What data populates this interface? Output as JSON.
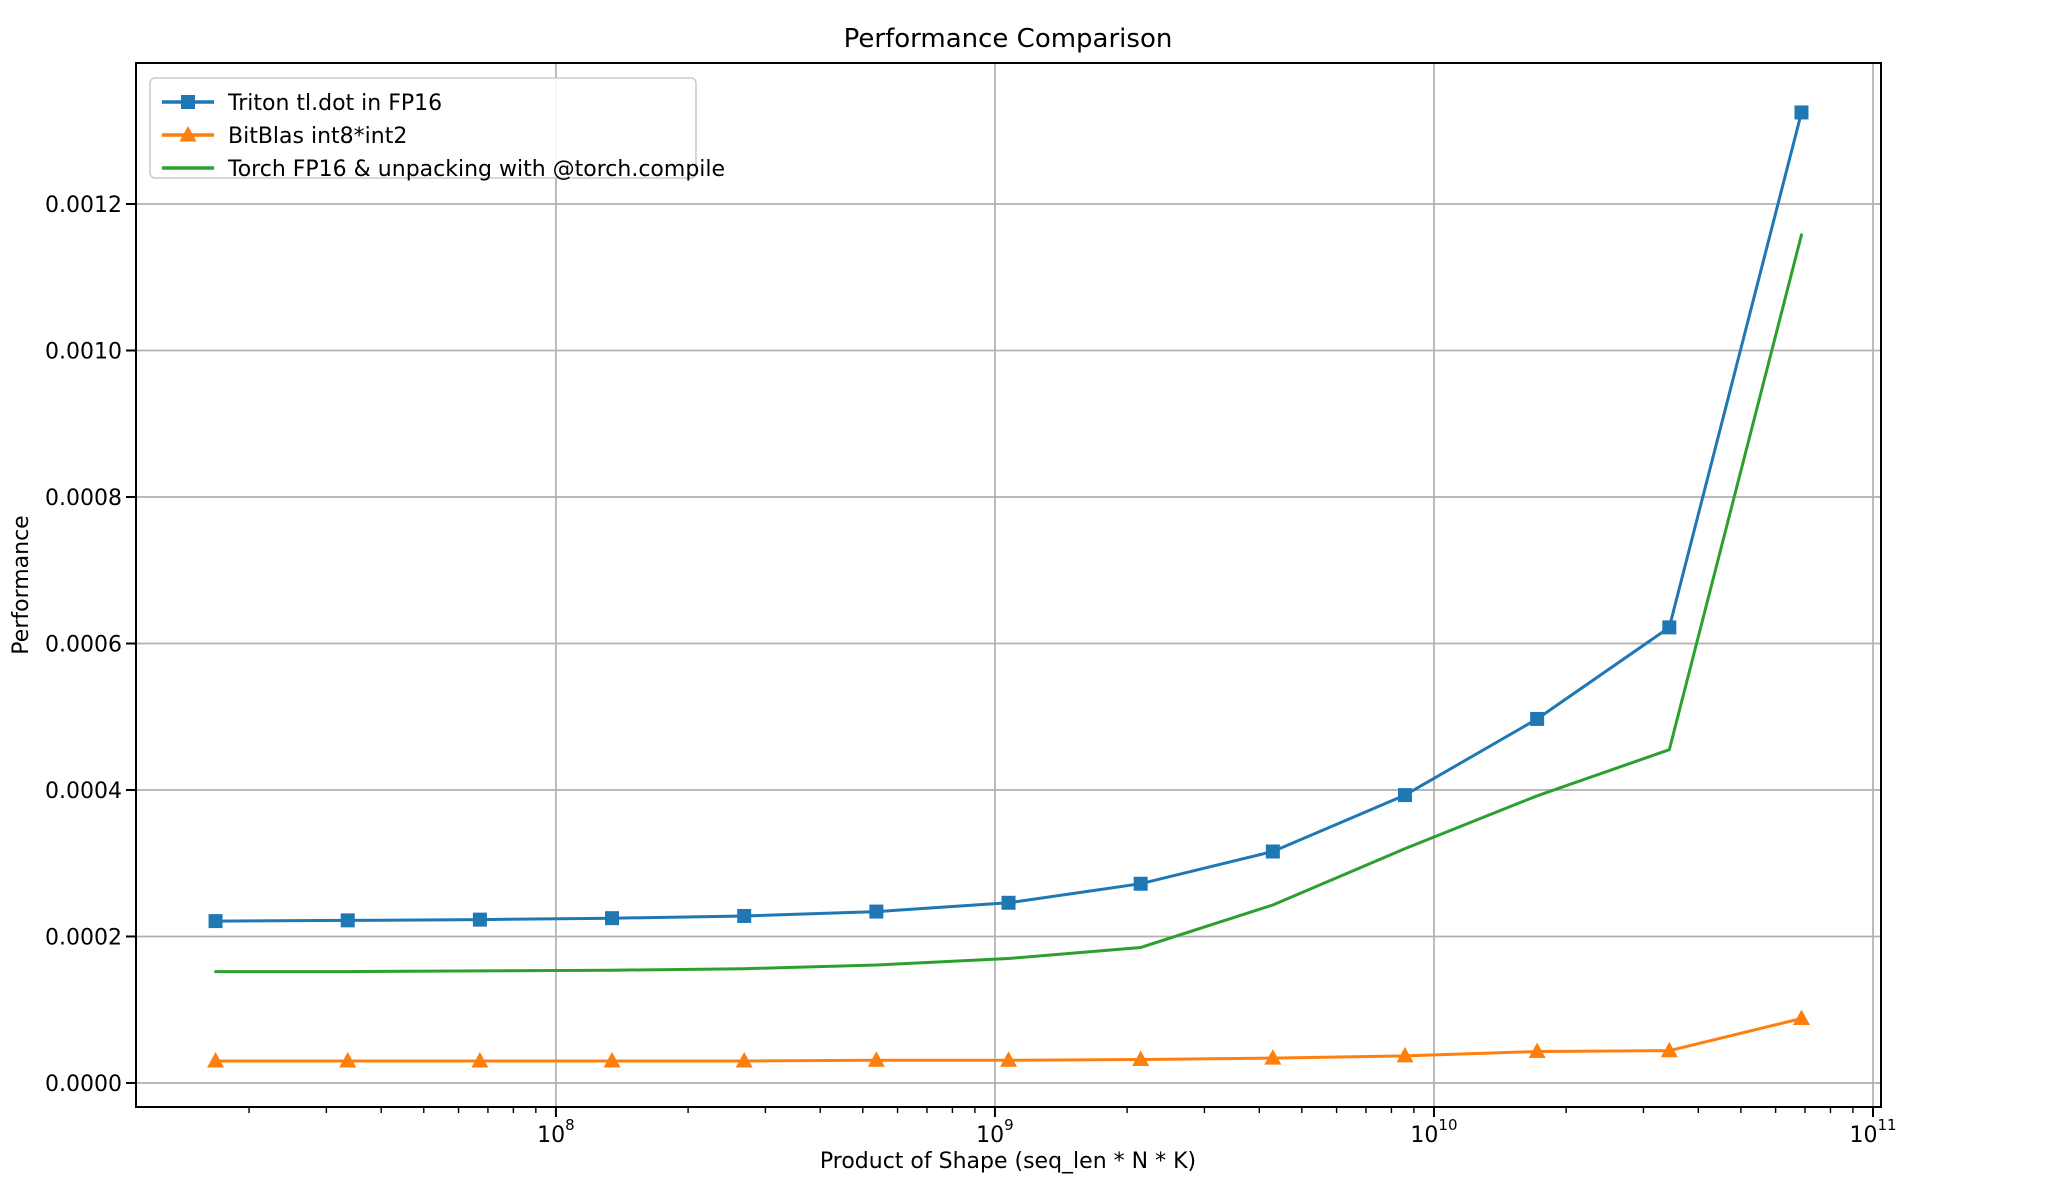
{
  "title": "Performance Comparison",
  "axes": {
    "xlabel": "Product of Shape (seq_len * N * K)",
    "ylabel": "Performance"
  },
  "legend": {
    "entries": [
      "Triton tl.dot in FP16",
      "BitBlas int8*int2",
      "Torch FP16 & unpacking with @torch.compile"
    ],
    "position": "upper left"
  },
  "colors": {
    "triton_blue": "#1f77b4",
    "bitblas_orange": "#ff7f0e",
    "torch_green": "#2ca02c",
    "gridline": "#b0b0b0",
    "spine": "#000000",
    "legend_border": "#cccccc",
    "background": "#ffffff"
  },
  "chart_data": {
    "type": "line",
    "title": "Performance Comparison",
    "xlabel": "Product of Shape (seq_len * N * K)",
    "ylabel": "Performance",
    "x_scale": "log",
    "grid": true,
    "legend_position": "upper left",
    "x": [
      16777216,
      33554432,
      67108864,
      134217728,
      268435456,
      536870912,
      1073741824,
      2147483648,
      4294967296,
      8589934592,
      17179869184,
      34359738368,
      68719476736
    ],
    "series": [
      {
        "name": "Triton tl.dot in FP16",
        "color": "#1f77b4",
        "marker": "square",
        "values": [
          0.000221,
          0.000222,
          0.000223,
          0.000225,
          0.000228,
          0.000234,
          0.000246,
          0.000272,
          0.000316,
          0.000393,
          0.000497,
          0.000622,
          0.001325
        ]
      },
      {
        "name": "BitBlas int8*int2",
        "color": "#ff7f0e",
        "marker": "triangle",
        "values": [
          3e-05,
          3e-05,
          3e-05,
          3e-05,
          3e-05,
          3.1e-05,
          3.1e-05,
          3.2e-05,
          3.4e-05,
          3.7e-05,
          4.3e-05,
          4.4e-05,
          8.8e-05
        ]
      },
      {
        "name": "Torch FP16 & unpacking with @torch.compile",
        "color": "#2ca02c",
        "marker": "none",
        "values": [
          0.000152,
          0.000152,
          0.000153,
          0.000154,
          0.000156,
          0.000161,
          0.00017,
          0.000185,
          0.000243,
          0.00032,
          0.000392,
          0.000455,
          0.001158
        ]
      }
    ],
    "x_major_ticks": [
      100000000,
      1000000000,
      10000000000,
      100000000000
    ],
    "x_tick_exponents": [
      8,
      9,
      10,
      11
    ],
    "y_ticks": [
      0.0,
      0.0002,
      0.0004,
      0.0006,
      0.0008,
      0.001,
      0.0012
    ],
    "y_tick_labels": [
      "0.0000",
      "0.0002",
      "0.0004",
      "0.0006",
      "0.0008",
      "0.0010",
      "0.0012"
    ],
    "xlim_log": [
      7.0435,
      11.0182
    ],
    "ylim": [
      -3.28e-05,
      0.0013925
    ]
  }
}
